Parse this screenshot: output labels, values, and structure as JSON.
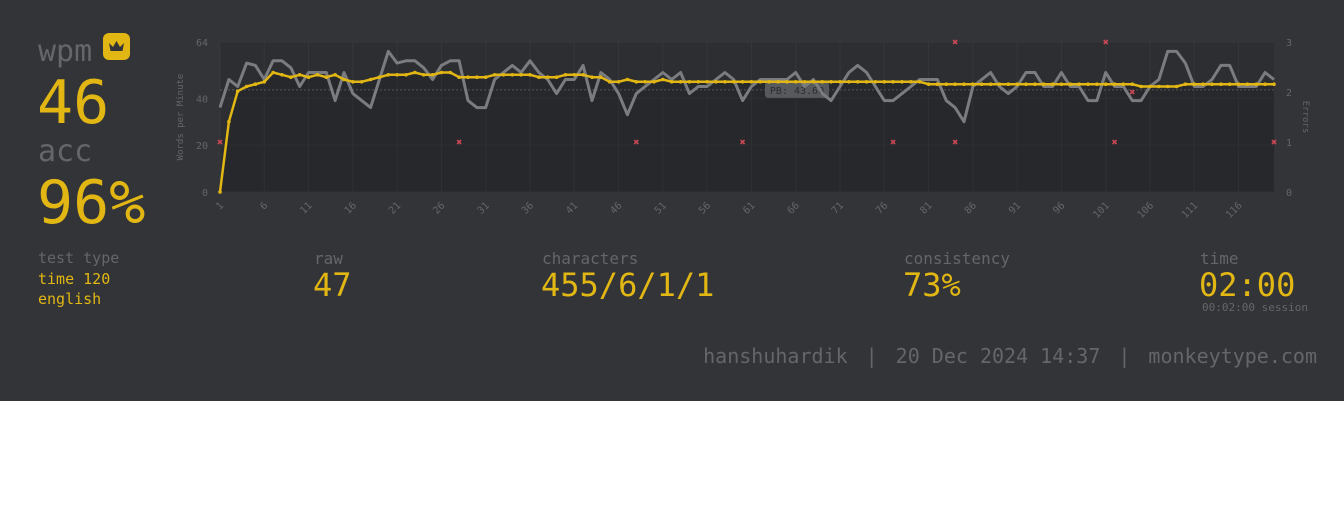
{
  "stats": {
    "wpm_label": "wpm",
    "wpm_value": "46",
    "acc_label": "acc",
    "acc_value": "96%",
    "personal_best_icon": "crown-icon"
  },
  "details": {
    "test_type_label": "test type",
    "test_type_mode": "time 120",
    "test_type_language": "english",
    "raw_label": "raw",
    "raw_value": "47",
    "characters_label": "characters",
    "characters_value": "455/6/1/1",
    "consistency_label": "consistency",
    "consistency_value": "73%",
    "time_label": "time",
    "time_value": "02:00",
    "session_text": "00:02:00 session"
  },
  "footer": {
    "username": "hanshuhardik",
    "separator": "|",
    "datetime": "20 Dec 2024 14:37",
    "site": "monkeytype.com"
  },
  "colors": {
    "background": "#323437",
    "accent": "#e2b714",
    "subtext": "#646669",
    "raw_line": "#7a7c7f",
    "error_mark": "#ca4754"
  },
  "chart_data": {
    "type": "line",
    "ylabel": "Words per Minute",
    "y2label": "Errors",
    "ylim": [
      0,
      64
    ],
    "y2lim": [
      0,
      3
    ],
    "yticks": [
      "0",
      "20",
      "40",
      "64"
    ],
    "y2ticks": [
      "0",
      "1",
      "2",
      "3"
    ],
    "x": [
      1,
      2,
      3,
      4,
      5,
      6,
      7,
      8,
      9,
      10,
      11,
      12,
      13,
      14,
      15,
      16,
      17,
      18,
      19,
      20,
      21,
      22,
      23,
      24,
      25,
      26,
      27,
      28,
      29,
      30,
      31,
      32,
      33,
      34,
      35,
      36,
      37,
      38,
      39,
      40,
      41,
      42,
      43,
      44,
      45,
      46,
      47,
      48,
      49,
      50,
      51,
      52,
      53,
      54,
      55,
      56,
      57,
      58,
      59,
      60,
      61,
      62,
      63,
      64,
      65,
      66,
      67,
      68,
      69,
      70,
      71,
      72,
      73,
      74,
      75,
      76,
      77,
      78,
      79,
      80,
      81,
      82,
      83,
      84,
      85,
      86,
      87,
      88,
      89,
      90,
      91,
      92,
      93,
      94,
      95,
      96,
      97,
      98,
      99,
      100,
      101,
      102,
      103,
      104,
      105,
      106,
      107,
      108,
      109,
      110,
      111,
      112,
      113,
      114,
      115,
      116,
      117,
      118,
      119,
      120
    ],
    "xticks": [
      "1",
      "6",
      "11",
      "16",
      "21",
      "26",
      "31",
      "36",
      "41",
      "46",
      "51",
      "56",
      "61",
      "66",
      "71",
      "76",
      "81",
      "86",
      "91",
      "96",
      "101",
      "106",
      "111",
      "116"
    ],
    "series": [
      {
        "name": "raw",
        "values": [
          36,
          48,
          45,
          55,
          54,
          48,
          56,
          56,
          53,
          45,
          51,
          51,
          51,
          39,
          51,
          42,
          39,
          36,
          48,
          60,
          55,
          56,
          56,
          53,
          48,
          54,
          56,
          56,
          39,
          36,
          36,
          48,
          51,
          54,
          51,
          56,
          51,
          48,
          42,
          48,
          48,
          54,
          39,
          51,
          48,
          42,
          33,
          42,
          45,
          48,
          51,
          48,
          51,
          42,
          45,
          45,
          48,
          51,
          48,
          39,
          45,
          48,
          48,
          48,
          48,
          51,
          45,
          48,
          42,
          39,
          45,
          51,
          54,
          51,
          45,
          39,
          39,
          42,
          45,
          48,
          48,
          48,
          39,
          36,
          30,
          45,
          48,
          51,
          45,
          42,
          45,
          51,
          51,
          45,
          45,
          51,
          45,
          45,
          39,
          39,
          51,
          45,
          45,
          39,
          39,
          45,
          48,
          60,
          60,
          55,
          45,
          45,
          48,
          54,
          54,
          45,
          45,
          45,
          51,
          48
        ]
      },
      {
        "name": "wpm",
        "values": [
          0,
          30,
          43,
          45,
          46,
          47,
          51,
          50,
          49,
          50,
          49,
          50,
          49,
          50,
          48,
          47,
          47,
          48,
          49,
          50,
          50,
          50,
          51,
          50,
          50,
          51,
          51,
          49,
          49,
          49,
          49,
          50,
          50,
          50,
          50,
          50,
          49,
          49,
          49,
          50,
          50,
          50,
          49,
          49,
          47,
          47,
          48,
          47,
          47,
          47,
          48,
          47,
          47,
          47,
          47,
          47,
          47,
          47,
          47,
          47,
          47,
          47,
          47,
          47,
          47,
          47,
          47,
          47,
          47,
          47,
          47,
          47,
          47,
          47,
          47,
          47,
          47,
          47,
          47,
          47,
          46,
          46,
          46,
          46,
          46,
          46,
          46,
          46,
          46,
          46,
          46,
          46,
          46,
          46,
          46,
          46,
          46,
          46,
          46,
          46,
          46,
          46,
          46,
          46,
          45,
          45,
          45,
          45,
          45,
          46,
          46,
          46,
          46,
          46,
          46,
          46,
          46,
          46,
          46,
          46
        ]
      }
    ],
    "errors": [
      {
        "x": 1,
        "y": 1
      },
      {
        "x": 28,
        "y": 1
      },
      {
        "x": 48,
        "y": 1
      },
      {
        "x": 60,
        "y": 1
      },
      {
        "x": 77,
        "y": 1
      },
      {
        "x": 84,
        "y": 1
      },
      {
        "x": 84,
        "y": 3
      },
      {
        "x": 101,
        "y": 3
      },
      {
        "x": 102,
        "y": 1
      },
      {
        "x": 104,
        "y": 2
      },
      {
        "x": 120,
        "y": 1
      }
    ],
    "annotations": [
      {
        "text": "PB: 43.60",
        "y": 43.6
      }
    ],
    "grid": true
  }
}
